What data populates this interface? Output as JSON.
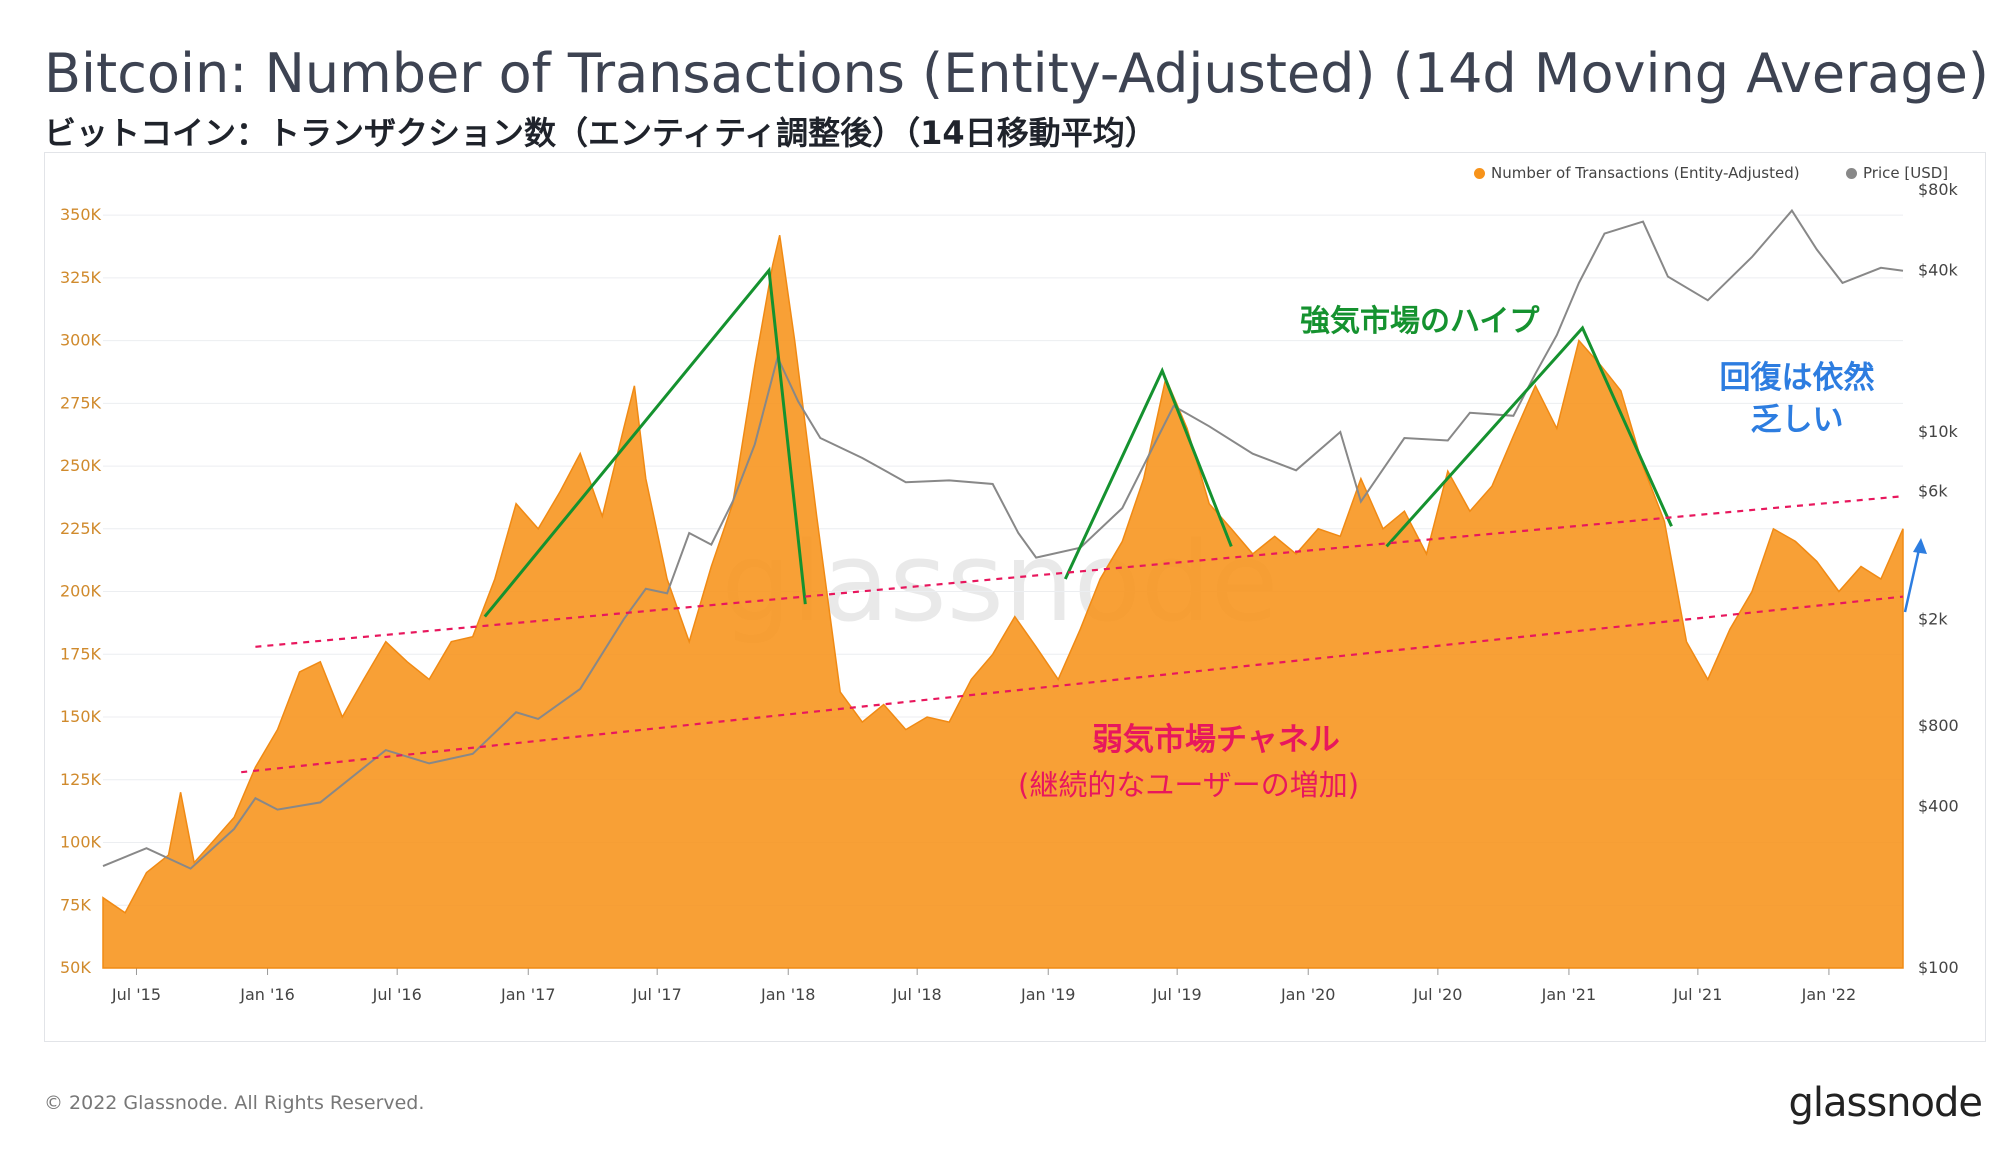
{
  "title": "Bitcoin: Number of Transactions (Entity-Adjusted) (14d Moving Average)",
  "subtitle": "ビットコイン：トランザクション数（エンティティ調整後）（14日移動平均）",
  "footer": {
    "copyright": "© 2022 Glassnode. All Rights Reserved.",
    "brand": "glassnode"
  },
  "watermark": "glassnode",
  "colors": {
    "orange": "#f7931a",
    "price": "#888888",
    "green": "#15922f",
    "pink": "#e8175d",
    "blue": "#2d7de0",
    "axis_left": "#d08a2c"
  },
  "legend": [
    {
      "label": "Number of Transactions (Entity-Adjusted)",
      "color": "#f7931a"
    },
    {
      "label": "Price [USD]",
      "color": "#888888"
    }
  ],
  "chart_data": {
    "type": "area",
    "y_left": {
      "ticks": [
        "50K",
        "75K",
        "100K",
        "125K",
        "150K",
        "175K",
        "200K",
        "225K",
        "250K",
        "275K",
        "300K",
        "325K",
        "350K"
      ],
      "range": [
        50000,
        360000
      ]
    },
    "y_right": {
      "scale": "log",
      "ticks": [
        "$100",
        "$400",
        "$800",
        "$2k",
        "$6k",
        "$10k",
        "$40k",
        "$80k"
      ],
      "range": [
        100,
        80000
      ]
    },
    "x_ticks": [
      "Jul '15",
      "Jan '16",
      "Jul '16",
      "Jan '17",
      "Jul '17",
      "Jan '18",
      "Jul '18",
      "Jan '19",
      "Jul '19",
      "Jan '20",
      "Jul '20",
      "Jan '21",
      "Jul '21",
      "Jan '22"
    ],
    "x_range": [
      "2015-05-15",
      "2022-04-15"
    ],
    "series": [
      {
        "name": "Number of Transactions (Entity-Adjusted)",
        "axis": "left",
        "points": [
          [
            "2015-05-15",
            78000
          ],
          [
            "2015-06-15",
            72000
          ],
          [
            "2015-07-15",
            88000
          ],
          [
            "2015-08-15",
            95000
          ],
          [
            "2015-09-01",
            120000
          ],
          [
            "2015-09-20",
            92000
          ],
          [
            "2015-10-15",
            100000
          ],
          [
            "2015-11-15",
            110000
          ],
          [
            "2015-12-15",
            130000
          ],
          [
            "2016-01-15",
            145000
          ],
          [
            "2016-02-15",
            168000
          ],
          [
            "2016-03-15",
            172000
          ],
          [
            "2016-04-15",
            150000
          ],
          [
            "2016-05-15",
            165000
          ],
          [
            "2016-06-15",
            180000
          ],
          [
            "2016-07-15",
            172000
          ],
          [
            "2016-08-15",
            165000
          ],
          [
            "2016-09-15",
            180000
          ],
          [
            "2016-10-15",
            182000
          ],
          [
            "2016-11-15",
            205000
          ],
          [
            "2016-12-15",
            235000
          ],
          [
            "2017-01-15",
            225000
          ],
          [
            "2017-02-15",
            240000
          ],
          [
            "2017-03-15",
            255000
          ],
          [
            "2017-04-15",
            230000
          ],
          [
            "2017-05-15",
            265000
          ],
          [
            "2017-05-30",
            282000
          ],
          [
            "2017-06-15",
            245000
          ],
          [
            "2017-07-15",
            205000
          ],
          [
            "2017-08-15",
            180000
          ],
          [
            "2017-09-15",
            210000
          ],
          [
            "2017-10-15",
            235000
          ],
          [
            "2017-11-15",
            290000
          ],
          [
            "2017-12-10",
            330000
          ],
          [
            "2017-12-20",
            342000
          ],
          [
            "2018-01-10",
            300000
          ],
          [
            "2018-02-10",
            230000
          ],
          [
            "2018-03-15",
            160000
          ],
          [
            "2018-04-15",
            148000
          ],
          [
            "2018-05-15",
            155000
          ],
          [
            "2018-06-15",
            145000
          ],
          [
            "2018-07-15",
            150000
          ],
          [
            "2018-08-15",
            148000
          ],
          [
            "2018-09-15",
            165000
          ],
          [
            "2018-10-15",
            175000
          ],
          [
            "2018-11-15",
            190000
          ],
          [
            "2018-12-15",
            178000
          ],
          [
            "2019-01-15",
            165000
          ],
          [
            "2019-02-15",
            185000
          ],
          [
            "2019-03-15",
            205000
          ],
          [
            "2019-04-15",
            220000
          ],
          [
            "2019-05-15",
            245000
          ],
          [
            "2019-06-15",
            285000
          ],
          [
            "2019-07-15",
            265000
          ],
          [
            "2019-08-15",
            235000
          ],
          [
            "2019-09-15",
            225000
          ],
          [
            "2019-10-15",
            215000
          ],
          [
            "2019-11-15",
            222000
          ],
          [
            "2019-12-15",
            215000
          ],
          [
            "2020-01-15",
            225000
          ],
          [
            "2020-02-15",
            222000
          ],
          [
            "2020-03-15",
            245000
          ],
          [
            "2020-04-15",
            225000
          ],
          [
            "2020-05-15",
            232000
          ],
          [
            "2020-06-15",
            215000
          ],
          [
            "2020-07-15",
            248000
          ],
          [
            "2020-08-15",
            232000
          ],
          [
            "2020-09-15",
            242000
          ],
          [
            "2020-10-15",
            262000
          ],
          [
            "2020-11-15",
            282000
          ],
          [
            "2020-12-15",
            265000
          ],
          [
            "2021-01-15",
            300000
          ],
          [
            "2021-02-15",
            290000
          ],
          [
            "2021-03-15",
            280000
          ],
          [
            "2021-04-15",
            250000
          ],
          [
            "2021-05-15",
            228000
          ],
          [
            "2021-06-15",
            180000
          ],
          [
            "2021-07-15",
            165000
          ],
          [
            "2021-08-15",
            185000
          ],
          [
            "2021-09-15",
            200000
          ],
          [
            "2021-10-15",
            225000
          ],
          [
            "2021-11-15",
            220000
          ],
          [
            "2021-12-15",
            212000
          ],
          [
            "2022-01-15",
            200000
          ],
          [
            "2022-02-15",
            210000
          ],
          [
            "2022-03-15",
            205000
          ],
          [
            "2022-04-15",
            225000
          ]
        ]
      },
      {
        "name": "Price [USD]",
        "axis": "right",
        "points": [
          [
            "2015-05-15",
            240
          ],
          [
            "2015-07-15",
            280
          ],
          [
            "2015-09-15",
            235
          ],
          [
            "2015-11-15",
            330
          ],
          [
            "2015-12-15",
            430
          ],
          [
            "2016-01-15",
            390
          ],
          [
            "2016-03-15",
            415
          ],
          [
            "2016-06-15",
            650
          ],
          [
            "2016-08-15",
            580
          ],
          [
            "2016-10-15",
            630
          ],
          [
            "2016-12-15",
            900
          ],
          [
            "2017-01-15",
            850
          ],
          [
            "2017-03-15",
            1100
          ],
          [
            "2017-05-15",
            2000
          ],
          [
            "2017-06-15",
            2600
          ],
          [
            "2017-07-15",
            2500
          ],
          [
            "2017-08-15",
            4200
          ],
          [
            "2017-09-15",
            3800
          ],
          [
            "2017-10-15",
            5500
          ],
          [
            "2017-11-15",
            9000
          ],
          [
            "2017-12-17",
            19000
          ],
          [
            "2018-01-15",
            13000
          ],
          [
            "2018-02-15",
            9500
          ],
          [
            "2018-04-15",
            8000
          ],
          [
            "2018-06-15",
            6500
          ],
          [
            "2018-08-15",
            6600
          ],
          [
            "2018-10-15",
            6400
          ],
          [
            "2018-11-20",
            4200
          ],
          [
            "2018-12-15",
            3400
          ],
          [
            "2019-02-15",
            3700
          ],
          [
            "2019-04-15",
            5200
          ],
          [
            "2019-06-26",
            12500
          ],
          [
            "2019-08-15",
            10500
          ],
          [
            "2019-10-15",
            8300
          ],
          [
            "2019-12-15",
            7200
          ],
          [
            "2020-02-15",
            10000
          ],
          [
            "2020-03-15",
            5500
          ],
          [
            "2020-05-15",
            9500
          ],
          [
            "2020-07-15",
            9300
          ],
          [
            "2020-08-15",
            11800
          ],
          [
            "2020-10-15",
            11500
          ],
          [
            "2020-11-15",
            16500
          ],
          [
            "2020-12-15",
            23000
          ],
          [
            "2021-01-15",
            36000
          ],
          [
            "2021-02-20",
            55000
          ],
          [
            "2021-04-15",
            61000
          ],
          [
            "2021-05-20",
            38000
          ],
          [
            "2021-07-15",
            31000
          ],
          [
            "2021-09-15",
            45000
          ],
          [
            "2021-11-10",
            67000
          ],
          [
            "2021-12-15",
            48000
          ],
          [
            "2022-01-20",
            36000
          ],
          [
            "2022-03-15",
            41000
          ],
          [
            "2022-04-15",
            40000
          ]
        ]
      }
    ],
    "annotations": [
      {
        "text": "強気市場のハイプ",
        "color": "#15922f"
      },
      {
        "text": "弱気市場チャネル",
        "color": "#e8175d"
      },
      {
        "text": "(継続的なユーザーの増加)",
        "color": "#e8175d"
      },
      {
        "text": "回復は依然",
        "color": "#2d7de0"
      },
      {
        "text": "乏しい",
        "color": "#2d7de0"
      }
    ],
    "trend_lines": [
      {
        "type": "hype",
        "points": [
          [
            "2016-11-01",
            190000
          ],
          [
            "2017-12-05",
            328000
          ],
          [
            "2018-01-25",
            195000
          ]
        ]
      },
      {
        "type": "hype",
        "points": [
          [
            "2019-01-25",
            205000
          ],
          [
            "2019-06-10",
            288000
          ],
          [
            "2019-09-15",
            218000
          ]
        ]
      },
      {
        "type": "hype",
        "points": [
          [
            "2020-04-20",
            218000
          ],
          [
            "2021-01-20",
            305000
          ],
          [
            "2021-05-25",
            226000
          ]
        ]
      },
      {
        "type": "channel-upper",
        "points": [
          [
            "2015-12-15",
            178000
          ],
          [
            "2022-04-15",
            238000
          ]
        ]
      },
      {
        "type": "channel-lower",
        "points": [
          [
            "2015-11-25",
            128000
          ],
          [
            "2022-04-15",
            198000
          ]
        ]
      }
    ]
  }
}
